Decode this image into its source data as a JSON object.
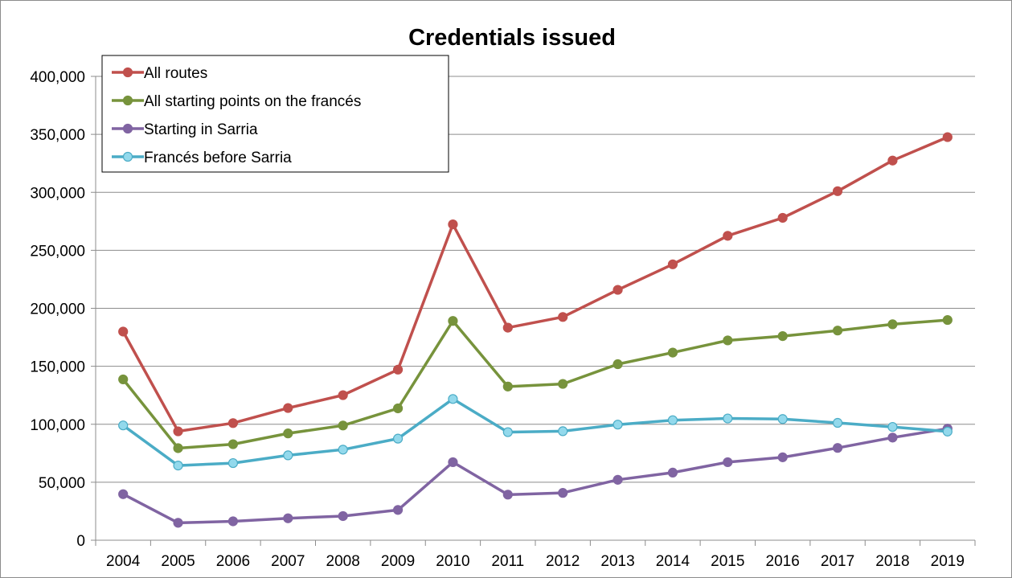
{
  "chart_data": {
    "type": "line",
    "title": "Credentials issued",
    "xlabel": "",
    "ylabel": "",
    "categories": [
      "2004",
      "2005",
      "2006",
      "2007",
      "2008",
      "2009",
      "2010",
      "2011",
      "2012",
      "2013",
      "2014",
      "2015",
      "2016",
      "2017",
      "2018",
      "2019"
    ],
    "ylim": [
      0,
      400000
    ],
    "yticks": [
      0,
      50000,
      100000,
      150000,
      200000,
      250000,
      300000,
      350000,
      400000
    ],
    "ytick_labels": [
      "0",
      "50,000",
      "100,000",
      "150,000",
      "200,000",
      "250,000",
      "300,000",
      "350,000",
      "400,000"
    ],
    "grid": "horizontal",
    "legend_position": "top-left",
    "series": [
      {
        "name": "All routes",
        "color": "#c0504d",
        "values": [
          179900,
          93900,
          101000,
          114000,
          125100,
          147100,
          272400,
          183300,
          192500,
          215900,
          237900,
          262500,
          278000,
          301000,
          327400,
          347600
        ]
      },
      {
        "name": "All starting points on the francés",
        "color": "#77933c",
        "values": [
          138700,
          79400,
          82800,
          92100,
          98900,
          113700,
          189100,
          132500,
          134800,
          151800,
          161800,
          172300,
          176000,
          180800,
          186200,
          189900
        ]
      },
      {
        "name": "Starting in Sarria",
        "color": "#8064a2",
        "values": [
          39700,
          15000,
          16300,
          18900,
          20800,
          26100,
          67300,
          39300,
          40800,
          52100,
          58300,
          67300,
          71500,
          79600,
          88500,
          96200
        ]
      },
      {
        "name": "Francés before Sarria",
        "color": "#4bacc6",
        "marker_fill": "#93d9ec",
        "values": [
          99000,
          64400,
          66500,
          73200,
          78100,
          87600,
          121800,
          93200,
          94000,
          99700,
          103500,
          105000,
          104500,
          101200,
          97700,
          93700
        ]
      }
    ]
  }
}
